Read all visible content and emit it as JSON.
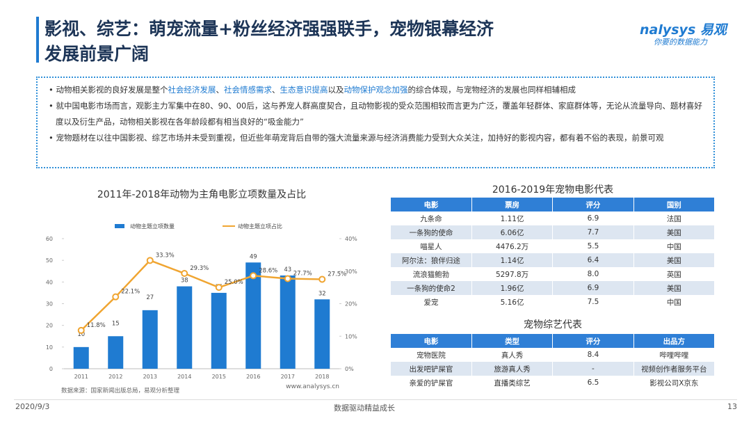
{
  "header": {
    "title_line1": "影视、综艺：萌宠流量+粉丝经济强强联手，宠物银幕经济",
    "title_line2": "发展前景广阔",
    "logo_main": "nalysys 易观",
    "logo_sub": "你要的数据能力"
  },
  "bullets": [
    [
      {
        "text": "动物相关影视的良好发展是整个",
        "em": false
      },
      {
        "text": "社会经济发展",
        "em": true
      },
      {
        "text": "、",
        "em": false
      },
      {
        "text": "社会情感需求",
        "em": true
      },
      {
        "text": "、",
        "em": false
      },
      {
        "text": "生态意识提高",
        "em": true
      },
      {
        "text": "以及",
        "em": false
      },
      {
        "text": "动物保护观念加强",
        "em": true
      },
      {
        "text": "的综合体现，与宠物经济的发展也同样相辅相成",
        "em": false
      }
    ],
    [
      {
        "text": "就中国电影市场而言，观影主力军集中在80、90、00后，这与养宠人群高度契合，且动物影视的受众范围相较而言更为广泛，覆盖年轻群体、家庭群体等，无论从流量导向、题材喜好度以及衍生产品，动物相关影视在各年龄段都有相当良好的“吸金能力”",
        "em": false
      }
    ],
    [
      {
        "text": "宠物题材在以往中国影视、综艺市场并未受到重视，但近些年萌宠背后自带的强大流量来源与经济消费能力受到大众关注，加持好的影视内容，都有着不俗的表现，前景可观",
        "em": false
      }
    ]
  ],
  "chart_data": {
    "type": "bar",
    "title": "2011年-2018年动物为主角电影立项数量及占比",
    "categories": [
      "2011",
      "2012",
      "2013",
      "2014",
      "2015",
      "2016",
      "2017",
      "2018"
    ],
    "series": [
      {
        "name": "动物主题立项数量",
        "type": "bar",
        "color": "#1f7bd1",
        "values": [
          10,
          15,
          27,
          38,
          35,
          49,
          43,
          32
        ]
      },
      {
        "name": "动物主题立项占比",
        "type": "line",
        "axis": "y2",
        "color": "#f0a531",
        "values": [
          11.8,
          22.1,
          33.3,
          29.3,
          25.0,
          28.6,
          27.7,
          27.5
        ],
        "value_labels": [
          "11.8%",
          "22.1%",
          "33.3%",
          "29.3%",
          "25.0%",
          "28.6%",
          "27.7%",
          "27.5%"
        ]
      }
    ],
    "ylim": [
      0,
      60
    ],
    "yticks": [
      0,
      10,
      20,
      30,
      40,
      50,
      60
    ],
    "y2lim": [
      0,
      40
    ],
    "y2ticks": [
      {
        "value": 0,
        "label": "0%"
      },
      {
        "value": 10,
        "label": "10%"
      },
      {
        "value": 20,
        "label": "20%"
      },
      {
        "value": 30,
        "label": "30%"
      },
      {
        "value": 40,
        "label": "40%"
      }
    ],
    "source": "数据来源：国家新闻出版总局，易观分析整理",
    "watermark": "www.analysys.cn"
  },
  "tables": [
    {
      "title": "2016-2019年宠物电影代表",
      "columns": [
        "电影",
        "票房",
        "评分",
        "国别"
      ],
      "rows": [
        [
          "九条命",
          "1.11亿",
          "6.9",
          "法国"
        ],
        [
          "一条狗的使命",
          "6.06亿",
          "7.7",
          "美国"
        ],
        [
          "喵星人",
          "4476.2万",
          "5.5",
          "中国"
        ],
        [
          "阿尔法：狼伴归途",
          "1.14亿",
          "6.4",
          "美国"
        ],
        [
          "流浪猫鲍勃",
          "5297.8万",
          "8.0",
          "英国"
        ],
        [
          "一条狗的使命2",
          "1.96亿",
          "6.9",
          "美国"
        ],
        [
          "爱宠",
          "5.16亿",
          "7.5",
          "中国"
        ]
      ]
    },
    {
      "title": "宠物综艺代表",
      "columns": [
        "电影",
        "类型",
        "评分",
        "出品方"
      ],
      "rows": [
        [
          "宠物医院",
          "真人秀",
          "8.4",
          "哔哩哔哩"
        ],
        [
          "出发吧铲屎官",
          "旅游真人秀",
          "-",
          "视频创作者服务平台"
        ],
        [
          "亲爱的铲屎官",
          "直播类综艺",
          "6.5",
          "影视公司X京东"
        ]
      ]
    }
  ],
  "footer": {
    "date": "2020/9/3",
    "slogan": "数据驱动精益成长",
    "page": "13"
  }
}
